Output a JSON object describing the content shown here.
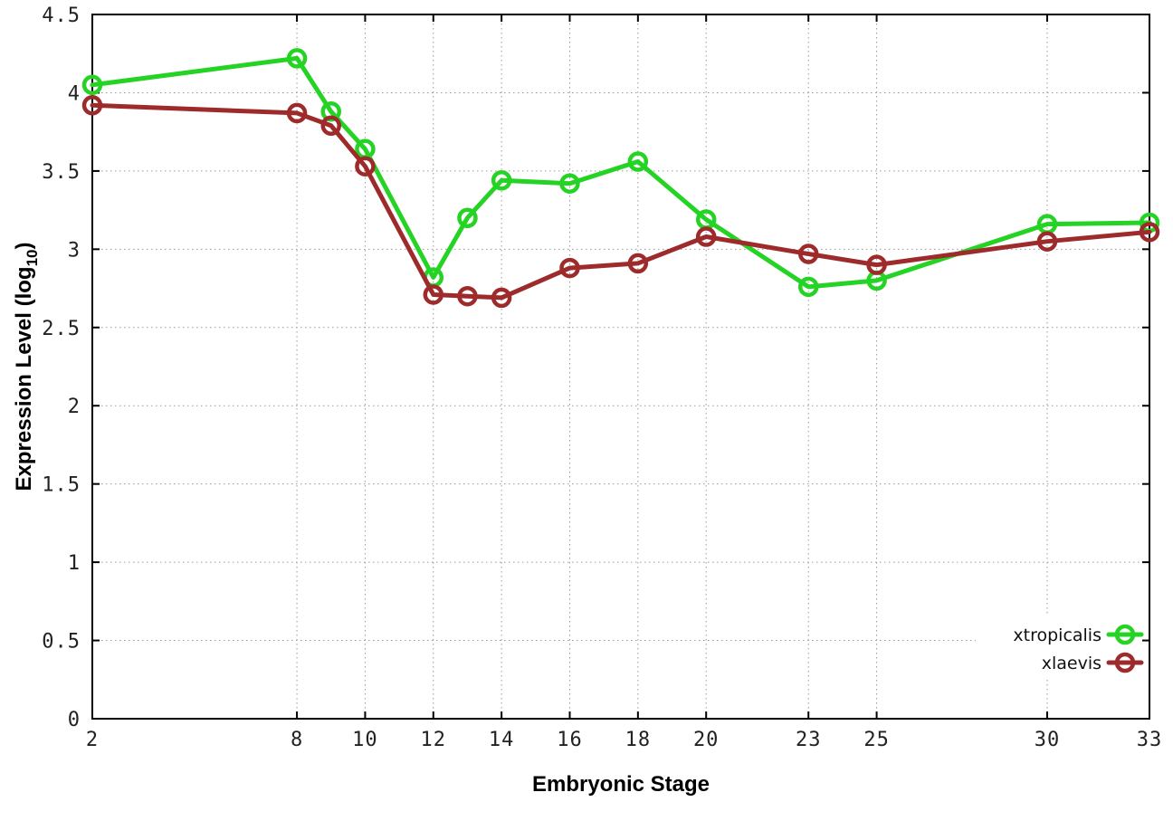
{
  "chart_data": {
    "type": "line",
    "title": "",
    "xlabel": "Embryonic Stage",
    "ylabel": "Expression Level (log10)",
    "ylabel_parts": {
      "prefix": "Expression Level (log",
      "subscript": "10",
      "suffix": ")"
    },
    "x": [
      2,
      8,
      9,
      10,
      12,
      13,
      14,
      16,
      18,
      20,
      23,
      25,
      30,
      33
    ],
    "series": [
      {
        "name": "xtropicalis",
        "color": "#24d324",
        "values": [
          4.05,
          4.22,
          3.88,
          3.64,
          2.82,
          3.2,
          3.44,
          3.42,
          3.56,
          3.19,
          2.76,
          2.8,
          3.16,
          3.17
        ]
      },
      {
        "name": "xlaevis",
        "color": "#9e2b2b",
        "values": [
          3.92,
          3.87,
          3.79,
          3.53,
          2.71,
          2.7,
          2.69,
          2.88,
          2.91,
          3.08,
          2.97,
          2.9,
          3.05,
          3.11
        ]
      }
    ],
    "xticks": [
      2,
      8,
      10,
      12,
      14,
      16,
      18,
      20,
      23,
      25,
      30,
      33
    ],
    "xtick_labels": [
      "2",
      "8",
      "10",
      "12",
      "14",
      "16",
      "18",
      "20",
      "23",
      "25",
      "30",
      "33"
    ],
    "yticks": [
      0,
      0.5,
      1,
      1.5,
      2,
      2.5,
      3,
      3.5,
      4,
      4.5
    ],
    "ytick_labels": [
      "0",
      "0.5",
      "1",
      "1.5",
      "2",
      "2.5",
      "3",
      "3.5",
      "4",
      "4.5"
    ],
    "xlim": [
      2,
      33
    ],
    "ylim": [
      0,
      4.5
    ],
    "grid": true,
    "grid_style": "dotted",
    "grid_color": "#999999",
    "axis_color": "#000000",
    "background": "#ffffff",
    "legend_position": "bottom-right",
    "marker": "open-circle"
  }
}
